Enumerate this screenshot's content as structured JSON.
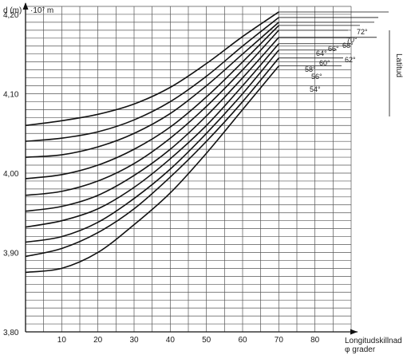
{
  "chart_data": {
    "type": "line",
    "ylabel": "d (m)",
    "yunit": "·10⁷ m",
    "xlabel_line1": "Longitudskillnad",
    "xlabel_line2": "φ grader",
    "group_label": "Latitud",
    "xlim": [
      0,
      90
    ],
    "ylim": [
      3.8,
      4.21
    ],
    "x_ticks": [
      10,
      20,
      30,
      40,
      50,
      60,
      70,
      80
    ],
    "y_ticks": [
      {
        "v": 3.8,
        "t": "3,80"
      },
      {
        "v": 3.9,
        "t": "3,90"
      },
      {
        "v": 4.0,
        "t": "4,00"
      },
      {
        "v": 4.1,
        "t": "4,10"
      },
      {
        "v": 4.2,
        "t": "4,20"
      }
    ],
    "grid": true,
    "x": [
      0,
      10,
      20,
      30,
      40,
      50,
      60,
      70
    ],
    "series": [
      {
        "name": "54°",
        "values": [
          3.875,
          3.88,
          3.9,
          3.935,
          3.975,
          4.025,
          4.08,
          4.135
        ]
      },
      {
        "name": "56°",
        "values": [
          3.895,
          3.905,
          3.925,
          3.955,
          3.995,
          4.04,
          4.09,
          4.145
        ]
      },
      {
        "name": "58°",
        "values": [
          3.913,
          3.92,
          3.938,
          3.968,
          4.005,
          4.05,
          4.1,
          4.155
        ]
      },
      {
        "name": "60°",
        "values": [
          3.932,
          3.94,
          3.955,
          3.982,
          4.018,
          4.06,
          4.11,
          4.163
        ]
      },
      {
        "name": "62°",
        "values": [
          3.952,
          3.958,
          3.972,
          3.997,
          4.03,
          4.072,
          4.12,
          4.171
        ]
      },
      {
        "name": "64°",
        "values": [
          3.972,
          3.977,
          3.99,
          4.012,
          4.044,
          4.084,
          4.13,
          4.18
        ]
      },
      {
        "name": "66°",
        "values": [
          3.993,
          3.998,
          4.01,
          4.03,
          4.058,
          4.096,
          4.14,
          4.186
        ]
      },
      {
        "name": "68°",
        "values": [
          4.02,
          4.023,
          4.033,
          4.05,
          4.075,
          4.11,
          4.15,
          4.19
        ]
      },
      {
        "name": "70°",
        "values": [
          4.04,
          4.044,
          4.052,
          4.067,
          4.09,
          4.122,
          4.16,
          4.196
        ]
      },
      {
        "name": "72°",
        "values": [
          4.06,
          4.066,
          4.074,
          4.087,
          4.108,
          4.138,
          4.172,
          4.203
        ]
      }
    ]
  }
}
